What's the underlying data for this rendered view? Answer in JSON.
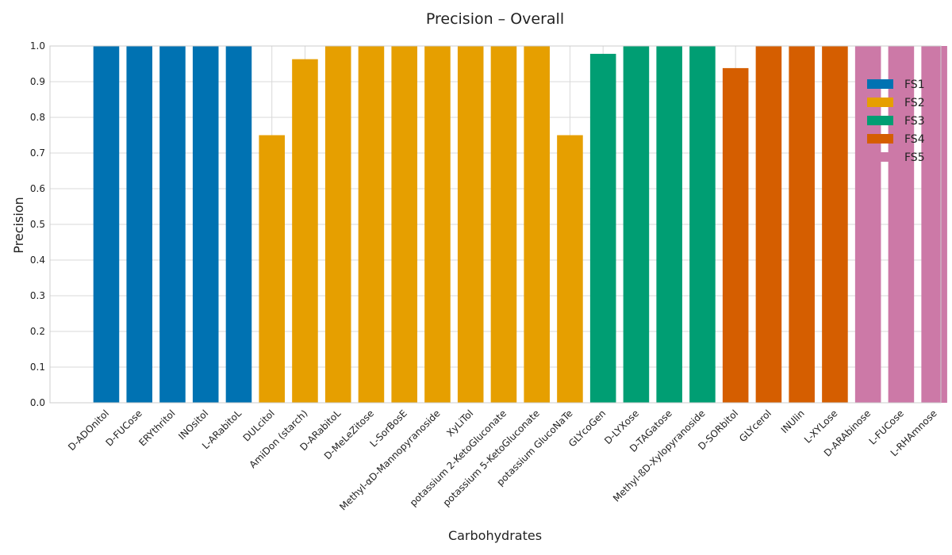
{
  "chart_data": {
    "type": "bar",
    "title": "Precision – Overall",
    "xlabel": "Carbohydrates",
    "ylabel": "Precision",
    "ylim": [
      0,
      1
    ],
    "yticks": [
      "0.0",
      "0.1",
      "0.2",
      "0.3",
      "0.4",
      "0.5",
      "0.6",
      "0.7",
      "0.8",
      "0.9",
      "1.0"
    ],
    "grid": true,
    "legend_position": "top-right",
    "categories": [
      "D-ADOnitol",
      "D-FUCose",
      "ERYthritol",
      "INOsitol",
      "L-ARabitoL",
      "DULcitol",
      "AmiDon (starch)",
      "D-ARabitoL",
      "D-MeLeZitose",
      "L-SorBosE",
      "Methyl-αD-Mannopyranoside",
      "XyLiTol",
      "potassium 2-KetoGluconate",
      "potassium 5-KetoGluconate",
      "potassium GlucoNaTe",
      "GLYcoGen",
      "D-LYXose",
      "D-TAGatose",
      "Methyl-ßD-Xylopyranoside",
      "D-SORbitol",
      "GLYcerol",
      "INUlin",
      "L-XYLose",
      "D-ARAbinose",
      "L-FUCose",
      "L-RHAmnose"
    ],
    "values": [
      1.0,
      1.0,
      1.0,
      1.0,
      1.0,
      0.75,
      0.963,
      1.0,
      1.0,
      1.0,
      1.0,
      1.0,
      1.0,
      1.0,
      0.75,
      0.978,
      1.0,
      1.0,
      1.0,
      0.938,
      1.0,
      1.0,
      1.0,
      1.0,
      1.0,
      1.0
    ],
    "groups": [
      0,
      0,
      0,
      0,
      0,
      1,
      1,
      1,
      1,
      1,
      1,
      1,
      1,
      1,
      1,
      2,
      2,
      2,
      2,
      3,
      3,
      3,
      3,
      4,
      4,
      4
    ],
    "legend": [
      {
        "name": "FS1",
        "color": "#0072b2"
      },
      {
        "name": "FS2",
        "color": "#e69f00"
      },
      {
        "name": "FS3",
        "color": "#009e73"
      },
      {
        "name": "FS4",
        "color": "#d55e00"
      },
      {
        "name": "FS5",
        "color": "#cc79a7"
      }
    ]
  }
}
